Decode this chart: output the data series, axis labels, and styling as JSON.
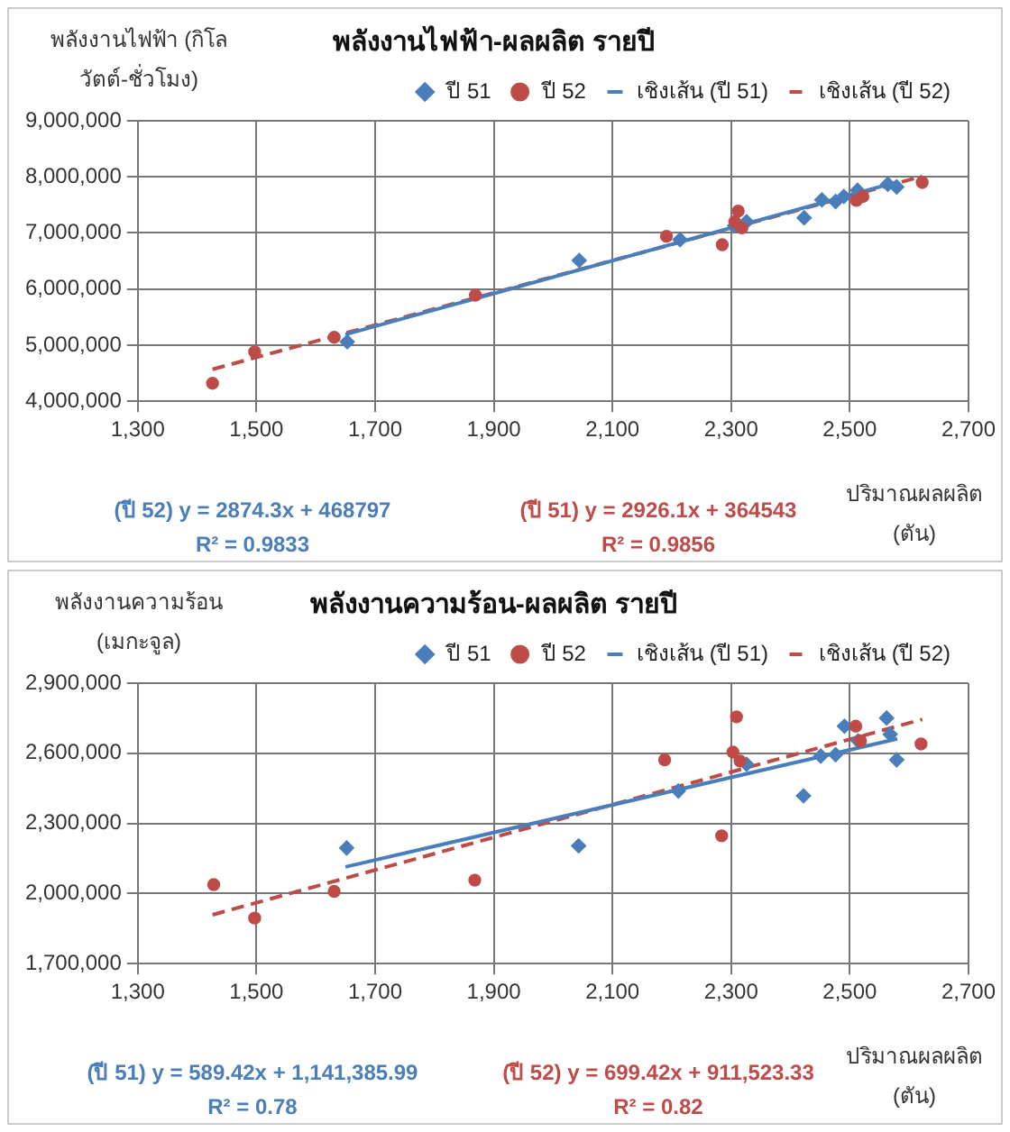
{
  "chart_data": [
    {
      "type": "scatter",
      "title": "พลังงานไฟฟ้า-ผลผลิต รายปี",
      "ylabel": "พลังงานไฟฟ้า (กิโลวัตต์-ชั่วโมง)",
      "xlabel": "ปริมาณผลผลิต (ตัน)",
      "xlim": [
        1300,
        2700
      ],
      "xticks": [
        {
          "value": 1300,
          "label": "1,300"
        },
        {
          "value": 1500,
          "label": "1,500"
        },
        {
          "value": 1700,
          "label": "1,700"
        },
        {
          "value": 1900,
          "label": "1,900"
        },
        {
          "value": 2100,
          "label": "2,100"
        },
        {
          "value": 2300,
          "label": "2,300"
        },
        {
          "value": 2500,
          "label": "2,500"
        },
        {
          "value": 2700,
          "label": "2,700"
        }
      ],
      "ylim": [
        4000000,
        9000000
      ],
      "yticks": [
        {
          "value": 4000000,
          "label": "4,000,000"
        },
        {
          "value": 5000000,
          "label": "5,000,000"
        },
        {
          "value": 6000000,
          "label": "6,000,000"
        },
        {
          "value": 7000000,
          "label": "7,000,000"
        },
        {
          "value": 8000000,
          "label": "8,000,000"
        },
        {
          "value": 9000000,
          "label": "9,000,000"
        }
      ],
      "grid": true,
      "legend": "top",
      "series": [
        {
          "name": "ปี 51",
          "color": "#4a7ebb",
          "marker": "diamond",
          "x": [
            1653,
            2044,
            2214,
            2306,
            2326,
            2423,
            2453,
            2476,
            2490,
            2513,
            2564,
            2579
          ],
          "values": [
            5060000,
            6510000,
            6880000,
            7130000,
            7200000,
            7270000,
            7590000,
            7560000,
            7650000,
            7760000,
            7870000,
            7820000
          ]
        },
        {
          "name": "ปี 52",
          "color": "#be4b48",
          "marker": "circle",
          "x": [
            1426,
            1497,
            1631,
            1869,
            2191,
            2285,
            2306,
            2312,
            2318,
            2511,
            2522,
            2622
          ],
          "values": [
            4320000,
            4880000,
            5140000,
            5890000,
            6940000,
            6790000,
            7200000,
            7390000,
            7090000,
            7580000,
            7650000,
            7900000
          ]
        },
        {
          "name": "เชิงเส้น (ปี 51)",
          "type": "line",
          "color": "#4a7ebb",
          "marker": "none",
          "line_style": "solid",
          "x": [
            1650,
            2580
          ],
          "values": [
            5190000,
            7910000
          ]
        },
        {
          "name": "เชิงเส้น (ปี 52)",
          "type": "line",
          "color": "#be4b48",
          "marker": "none",
          "line_style": "dashed",
          "x": [
            1426,
            2622
          ],
          "values": [
            4570000,
            8010000
          ]
        }
      ],
      "annotations": [
        "(ปี 52) y = 2874.3x + 468797",
        "R² = 0.9833",
        "(ปี 51) y = 2926.1x + 364543",
        "R² = 0.9856"
      ]
    },
    {
      "type": "scatter",
      "title": "พลังงานความร้อน-ผลผลิต รายปี",
      "ylabel": "พลังงานความร้อน (เมกะจูล)",
      "xlabel": "ปริมาณผลผลิต (ตัน)",
      "xlim": [
        1300,
        2700
      ],
      "xticks": [
        {
          "value": 1300,
          "label": "1,300"
        },
        {
          "value": 1500,
          "label": "1,500"
        },
        {
          "value": 1700,
          "label": "1,700"
        },
        {
          "value": 1900,
          "label": "1,900"
        },
        {
          "value": 2100,
          "label": "2,100"
        },
        {
          "value": 2300,
          "label": "2,300"
        },
        {
          "value": 2500,
          "label": "2,500"
        },
        {
          "value": 2700,
          "label": "2,700"
        }
      ],
      "ylim": [
        1700000,
        2900000
      ],
      "yticks": [
        {
          "value": 1700000,
          "label": "1,700,000"
        },
        {
          "value": 2000000,
          "label": "2,000,000"
        },
        {
          "value": 2300000,
          "label": "2,300,000"
        },
        {
          "value": 2600000,
          "label": "2,600,000"
        },
        {
          "value": 2900000,
          "label": "2,900,000"
        }
      ],
      "grid": true,
      "legend": "top",
      "series": [
        {
          "name": "ปี 51",
          "color": "#4a7ebb",
          "marker": "diamond",
          "x": [
            1652,
            2043,
            2211,
            2326,
            2422,
            2451,
            2476,
            2491,
            2514,
            2562,
            2568,
            2579
          ],
          "values": [
            2195000,
            2204000,
            2439000,
            2553000,
            2418000,
            2588000,
            2594000,
            2716000,
            2653000,
            2751000,
            2681000,
            2572000
          ]
        },
        {
          "name": "ปี 52",
          "color": "#be4b48",
          "marker": "circle",
          "x": [
            1428,
            1497,
            1631,
            1868,
            2188,
            2284,
            2303,
            2309,
            2315,
            2510,
            2518,
            2620
          ],
          "values": [
            2038000,
            1895000,
            2009000,
            2057000,
            2572000,
            2247000,
            2605000,
            2756000,
            2567000,
            2716000,
            2653000,
            2640000
          ]
        },
        {
          "name": "เชิงเส้น (ปี 51)",
          "type": "line",
          "color": "#4a7ebb",
          "marker": "none",
          "line_style": "solid",
          "x": [
            1650,
            2580
          ],
          "values": [
            2114000,
            2662000
          ]
        },
        {
          "name": "เชิงเส้น (ปี 52)",
          "type": "line",
          "color": "#be4b48",
          "marker": "none",
          "line_style": "dashed",
          "x": [
            1426,
            2622
          ],
          "values": [
            1909000,
            2745000
          ]
        }
      ],
      "annotations": [
        "(ปี 51) y = 589.42x + 1,141,385.99",
        "R² = 0.78",
        "(ปี 52) y = 699.42x + 911,523.33",
        "R² = 0.82"
      ]
    }
  ]
}
